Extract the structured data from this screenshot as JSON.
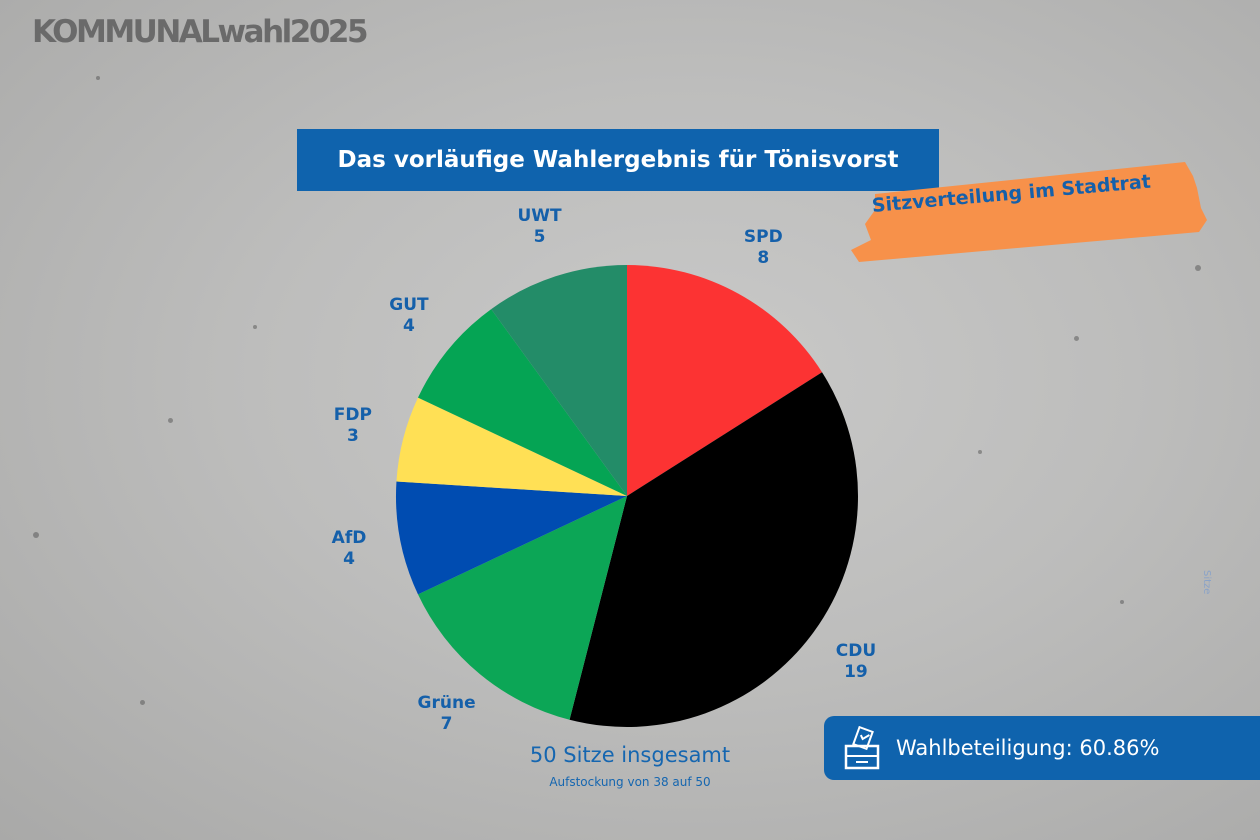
{
  "logo": "KOMMUNALwahl2025",
  "title": "Das vorläufige Wahlergebnis für Tönisvorst",
  "badge": "Sitzverteilung im Stadtrat",
  "side_label": "Sitze",
  "summary": {
    "total": "50 Sitze insgesamt",
    "note": "Aufstockung von 38 auf 50"
  },
  "turnout": {
    "icon": "ballot-box-icon",
    "text": "Wahlbeteiligung: 60.86%"
  },
  "colors": {
    "accent": "#0f63ad",
    "badge": "#f7914a",
    "label": "#1560aa"
  },
  "chart_data": {
    "type": "pie",
    "title": "",
    "unit": "Sitze",
    "total": 50,
    "start_angle_deg": 0,
    "direction": "clockwise",
    "slices": [
      {
        "label": "SPD",
        "value": 8,
        "color": "#fc3333"
      },
      {
        "label": "CDU",
        "value": 19,
        "color": "#000000"
      },
      {
        "label": "Grüne",
        "value": 7,
        "color": "#0ca656"
      },
      {
        "label": "AfD",
        "value": 4,
        "color": "#004cb1"
      },
      {
        "label": "FDP",
        "value": 3,
        "color": "#ffe055"
      },
      {
        "label": "GUT",
        "value": 4,
        "color": "#05a454"
      },
      {
        "label": "UWT",
        "value": 5,
        "color": "#238c68"
      }
    ]
  }
}
